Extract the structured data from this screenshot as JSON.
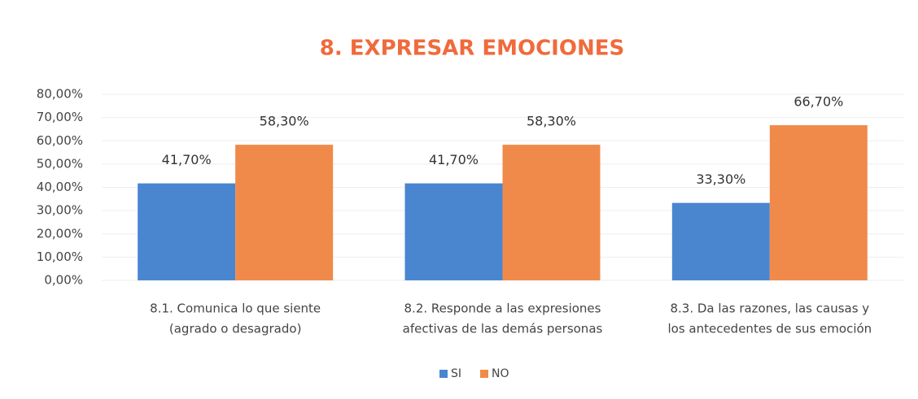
{
  "chart_data": {
    "type": "bar",
    "title": "8. EXPRESAR EMOCIONES",
    "categories": [
      [
        "8.1. Comunica lo que siente",
        "(agrado o desagrado)"
      ],
      [
        "8.2. Responde a las expresiones",
        "afectivas de las demás personas"
      ],
      [
        "8.3. Da las razones, las causas y",
        "los antecedentes de sus emoción"
      ]
    ],
    "series": [
      {
        "name": "SI",
        "color": "#4a86d0",
        "values": [
          41.7,
          41.7,
          33.3
        ],
        "value_labels": [
          "41,70%",
          "41,70%",
          "33,30%"
        ]
      },
      {
        "name": "NO",
        "color": "#f08a4b",
        "values": [
          58.3,
          58.3,
          66.7
        ],
        "value_labels": [
          "58,30%",
          "58,30%",
          "66,70%"
        ]
      }
    ],
    "ylim": [
      0,
      80
    ],
    "yticks": [
      {
        "value": 0,
        "label": "0,00%"
      },
      {
        "value": 10,
        "label": "10,00%"
      },
      {
        "value": 20,
        "label": "20,00%"
      },
      {
        "value": 30,
        "label": "30,00%"
      },
      {
        "value": 40,
        "label": "40,00%"
      },
      {
        "value": 50,
        "label": "50,00%"
      },
      {
        "value": 60,
        "label": "60,00%"
      },
      {
        "value": 70,
        "label": "70,00%"
      },
      {
        "value": 80,
        "label": "80,00%"
      }
    ],
    "grid": true,
    "legend": "bottom"
  }
}
